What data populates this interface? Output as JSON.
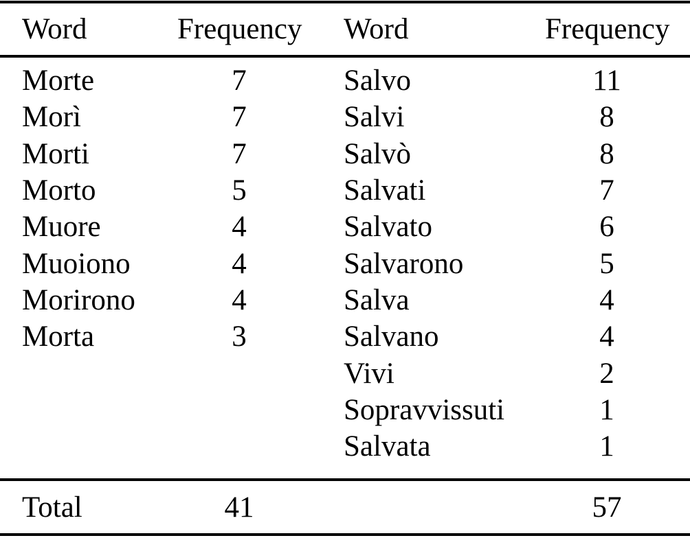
{
  "colors": {
    "background": "#ffffff",
    "text": "#000000",
    "rule": "#000000"
  },
  "table": {
    "headers": {
      "word_left": "Word",
      "freq_left": "Frequency",
      "word_right": "Word",
      "freq_right": "Frequency"
    },
    "rows": [
      {
        "w1": "Morte",
        "f1": "7",
        "w2": "Salvo",
        "f2": "11"
      },
      {
        "w1": "Morì",
        "f1": "7",
        "w2": "Salvi",
        "f2": "8"
      },
      {
        "w1": "Morti",
        "f1": "7",
        "w2": "Salvò",
        "f2": "8"
      },
      {
        "w1": "Morto",
        "f1": "5",
        "w2": "Salvati",
        "f2": "7"
      },
      {
        "w1": "Muore",
        "f1": "4",
        "w2": "Salvato",
        "f2": "6"
      },
      {
        "w1": "Muoiono",
        "f1": "4",
        "w2": "Salvarono",
        "f2": "5"
      },
      {
        "w1": "Morirono",
        "f1": "4",
        "w2": "Salva",
        "f2": "4"
      },
      {
        "w1": "Morta",
        "f1": "3",
        "w2": "Salvano",
        "f2": "4"
      },
      {
        "w1": "",
        "f1": "",
        "w2": "Vivi",
        "f2": "2"
      },
      {
        "w1": "",
        "f1": "",
        "w2": "Sopravvissuti",
        "f2": "1"
      },
      {
        "w1": "",
        "f1": "",
        "w2": "Salvata",
        "f2": "1"
      }
    ],
    "total": {
      "label": "Total",
      "freq_left": "41",
      "freq_right": "57"
    }
  }
}
